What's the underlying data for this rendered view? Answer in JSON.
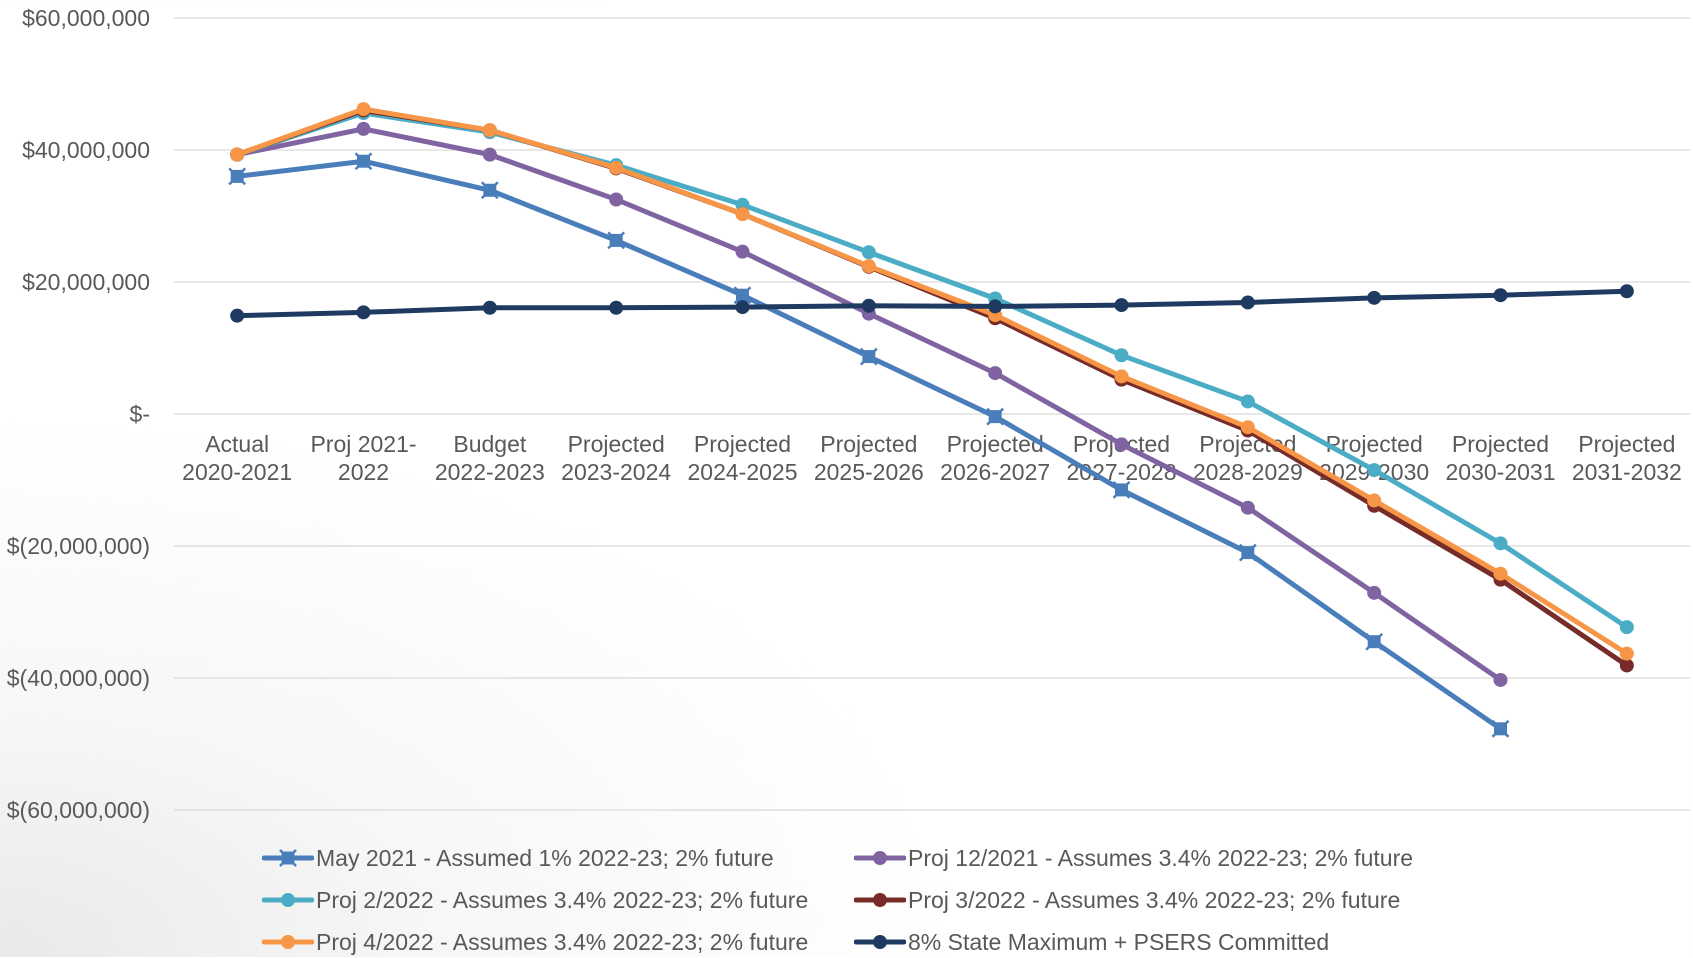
{
  "chart_data": {
    "type": "line",
    "title": "",
    "xlabel": "",
    "ylabel": "",
    "ylim": [
      -60000000,
      60000000
    ],
    "y_ticks": [
      {
        "value": 60000000,
        "label": "$60,000,000"
      },
      {
        "value": 40000000,
        "label": "$40,000,000"
      },
      {
        "value": 20000000,
        "label": "$20,000,000"
      },
      {
        "value": 0,
        "label": "$-"
      },
      {
        "value": -20000000,
        "label": "$(20,000,000)"
      },
      {
        "value": -40000000,
        "label": "$(40,000,000)"
      },
      {
        "value": -60000000,
        "label": "$(60,000,000)"
      }
    ],
    "categories": [
      [
        "Actual",
        "2020-2021"
      ],
      [
        "Proj 2021-",
        "2022"
      ],
      [
        "Budget",
        "2022-2023"
      ],
      [
        "Projected",
        "2023-2024"
      ],
      [
        "Projected",
        "2024-2025"
      ],
      [
        "Projected",
        "2025-2026"
      ],
      [
        "Projected",
        "2026-2027"
      ],
      [
        "Projected",
        "2027-2028"
      ],
      [
        "Projected",
        "2028-2029"
      ],
      [
        "Projected",
        "2029-2030"
      ],
      [
        "Projected",
        "2030-2031"
      ],
      [
        "Projected",
        "2031-2032"
      ]
    ],
    "grid": true,
    "legend_position": "bottom",
    "series": [
      {
        "name": "May 2021 - Assumed 1% 2022-23; 2% future",
        "color": "#4a7ebb",
        "marker": "square-star",
        "values": [
          36000000,
          38300000,
          33900000,
          26300000,
          18000000,
          8700000,
          -400000,
          -11500000,
          -21000000,
          -34500000,
          -47700000,
          null
        ]
      },
      {
        "name": "Proj 12/2021 - Assumes 3.4% 2022-23; 2% future",
        "color": "#8064a2",
        "marker": "circle",
        "values": [
          39300000,
          43200000,
          39300000,
          32500000,
          24600000,
          15200000,
          6200000,
          -4600000,
          -14200000,
          -27100000,
          -40300000,
          null
        ]
      },
      {
        "name": "Proj 2/2022 - Assumes 3.4% 2022-23; 2% future",
        "color": "#4bacc6",
        "marker": "circle",
        "values": [
          39300000,
          45600000,
          42700000,
          37700000,
          31700000,
          24500000,
          17500000,
          8900000,
          1900000,
          -8500000,
          -19600000,
          -32300000
        ]
      },
      {
        "name": "Proj 3/2022 - Assumes 3.4% 2022-23; 2% future",
        "color": "#772c2a",
        "marker": "circle",
        "values": [
          39300000,
          46000000,
          43000000,
          37200000,
          30300000,
          22300000,
          14500000,
          5200000,
          -2500000,
          -13900000,
          -25100000,
          -38100000
        ]
      },
      {
        "name": "Proj 4/2022 - Assumes 3.4% 2022-23; 2% future",
        "color": "#f79646",
        "marker": "circle",
        "values": [
          39300000,
          46200000,
          43000000,
          37300000,
          30300000,
          22400000,
          15000000,
          5700000,
          -2000000,
          -13100000,
          -24200000,
          -36300000
        ]
      },
      {
        "name": "8% State Maximum + PSERS Committed",
        "color": "#1f3a60",
        "marker": "circle",
        "values": [
          14900000,
          15400000,
          16100000,
          16100000,
          16200000,
          16400000,
          16300000,
          16500000,
          16900000,
          17600000,
          18000000,
          18600000
        ]
      }
    ]
  }
}
